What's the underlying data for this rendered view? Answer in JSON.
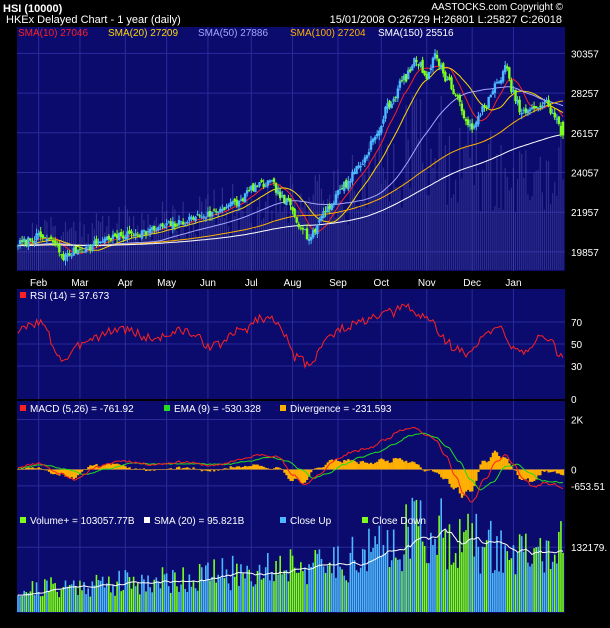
{
  "header": {
    "title": "HSI (10000)",
    "subtitle": "HKEx  Delayed Chart - 1 year (daily)",
    "quote": "15/01/2008  O:26729  H:26801  L:25827  C:26018",
    "copyright": "AASTOCKS.com Copyright ©"
  },
  "colors": {
    "background": "#000000",
    "panel": "#0b0b6e",
    "grid": "#2a2a9a",
    "up": "#4db8ff",
    "down": "#7cff1a",
    "sma10": "#ff2020",
    "sma20": "#ffd700",
    "sma50": "#a6a6ff",
    "sma100": "#ffb000",
    "sma150": "#ffffff",
    "rsi": "#ff2020",
    "macd": "#ff2020",
    "ema": "#22dd22",
    "divergence": "#ffb000",
    "volume_sma": "#ffffff"
  },
  "chart_data": [
    {
      "type": "candlestick",
      "legend": [
        {
          "label": "SMA(10) 27046",
          "color": "#ff2020"
        },
        {
          "label": "SMA(20) 27209",
          "color": "#ffd700"
        },
        {
          "label": "SMA(50) 27886",
          "color": "#a6a6ff"
        },
        {
          "label": "SMA(100) 27204",
          "color": "#ffb000"
        },
        {
          "label": "SMA(150) 25516",
          "color": "#ffffff"
        }
      ],
      "x_ticks": [
        "Feb",
        "Mar",
        "Apr",
        "May",
        "Jun",
        "Jul",
        "Aug",
        "Sep",
        "Oct",
        "Nov",
        "Dec",
        "Jan"
      ],
      "y_ticks": [
        30357,
        28257,
        26157,
        24057,
        21957,
        19857
      ],
      "ylim": [
        18900,
        31700
      ],
      "close_anchors": [
        [
          0,
          20300
        ],
        [
          10,
          20650
        ],
        [
          17,
          20400
        ],
        [
          22,
          19600
        ],
        [
          30,
          20000
        ],
        [
          45,
          20600
        ],
        [
          60,
          20900
        ],
        [
          75,
          21300
        ],
        [
          90,
          21800
        ],
        [
          105,
          22400
        ],
        [
          115,
          23300
        ],
        [
          122,
          23500
        ],
        [
          130,
          22500
        ],
        [
          137,
          21300
        ],
        [
          141,
          20600
        ],
        [
          150,
          22200
        ],
        [
          158,
          23400
        ],
        [
          166,
          24500
        ],
        [
          173,
          25900
        ],
        [
          180,
          27700
        ],
        [
          187,
          29000
        ],
        [
          193,
          30000
        ],
        [
          198,
          29200
        ],
        [
          202,
          30200
        ],
        [
          208,
          29000
        ],
        [
          212,
          28100
        ],
        [
          216,
          27100
        ],
        [
          220,
          26300
        ],
        [
          226,
          27600
        ],
        [
          232,
          28700
        ],
        [
          236,
          29600
        ],
        [
          240,
          28200
        ],
        [
          244,
          27200
        ],
        [
          248,
          27300
        ],
        [
          252,
          27600
        ],
        [
          256,
          27700
        ],
        [
          260,
          27000
        ],
        [
          264,
          26000
        ]
      ],
      "last": {
        "open": 26729,
        "high": 26801,
        "low": 25827,
        "close": 26018
      }
    },
    {
      "type": "line",
      "legend": "RSI (14) = 37.673",
      "y_ticks": [
        70,
        50,
        30,
        0
      ],
      "ylim": [
        0,
        100
      ],
      "anchors": [
        [
          0,
          62
        ],
        [
          10,
          70
        ],
        [
          22,
          36
        ],
        [
          35,
          56
        ],
        [
          50,
          64
        ],
        [
          65,
          55
        ],
        [
          80,
          62
        ],
        [
          95,
          48
        ],
        [
          108,
          62
        ],
        [
          118,
          74
        ],
        [
          126,
          71
        ],
        [
          134,
          38
        ],
        [
          141,
          32
        ],
        [
          150,
          56
        ],
        [
          160,
          66
        ],
        [
          170,
          72
        ],
        [
          180,
          78
        ],
        [
          188,
          84
        ],
        [
          194,
          76
        ],
        [
          200,
          72
        ],
        [
          206,
          55
        ],
        [
          212,
          46
        ],
        [
          218,
          40
        ],
        [
          226,
          58
        ],
        [
          234,
          64
        ],
        [
          240,
          48
        ],
        [
          246,
          44
        ],
        [
          252,
          56
        ],
        [
          258,
          50
        ],
        [
          264,
          37.673
        ]
      ]
    },
    {
      "type": "line",
      "legend": [
        {
          "label": "MACD (5,26) = -761.92",
          "color": "#ff2020"
        },
        {
          "label": "EMA (9) = -530.328",
          "color": "#22dd22"
        },
        {
          "label": "Divergence = -231.593",
          "color": "#ffb000"
        }
      ],
      "y_ticks": [
        "2K",
        "0",
        "-653.51"
      ],
      "ylim": [
        -1700,
        2700
      ],
      "macd_anchors": [
        [
          0,
          100
        ],
        [
          10,
          250
        ],
        [
          20,
          -150
        ],
        [
          28,
          -400
        ],
        [
          38,
          100
        ],
        [
          50,
          350
        ],
        [
          65,
          200
        ],
        [
          80,
          300
        ],
        [
          95,
          150
        ],
        [
          108,
          400
        ],
        [
          118,
          600
        ],
        [
          126,
          500
        ],
        [
          133,
          -200
        ],
        [
          139,
          -600
        ],
        [
          146,
          -200
        ],
        [
          154,
          400
        ],
        [
          162,
          700
        ],
        [
          170,
          850
        ],
        [
          178,
          1200
        ],
        [
          186,
          1600
        ],
        [
          192,
          1700
        ],
        [
          197,
          1400
        ],
        [
          202,
          1200
        ],
        [
          207,
          600
        ],
        [
          212,
          -300
        ],
        [
          216,
          -1000
        ],
        [
          220,
          -1300
        ],
        [
          226,
          -400
        ],
        [
          232,
          300
        ],
        [
          236,
          600
        ],
        [
          240,
          200
        ],
        [
          245,
          -400
        ],
        [
          250,
          -700
        ],
        [
          255,
          -550
        ],
        [
          260,
          -600
        ],
        [
          264,
          -761.92
        ]
      ],
      "ema_anchors": [
        [
          0,
          50
        ],
        [
          12,
          180
        ],
        [
          24,
          0
        ],
        [
          32,
          -200
        ],
        [
          42,
          0
        ],
        [
          55,
          250
        ],
        [
          70,
          220
        ],
        [
          85,
          230
        ],
        [
          100,
          200
        ],
        [
          112,
          330
        ],
        [
          122,
          500
        ],
        [
          130,
          350
        ],
        [
          137,
          0
        ],
        [
          143,
          -350
        ],
        [
          150,
          -150
        ],
        [
          158,
          200
        ],
        [
          166,
          500
        ],
        [
          174,
          700
        ],
        [
          182,
          1000
        ],
        [
          190,
          1350
        ],
        [
          196,
          1450
        ],
        [
          202,
          1300
        ],
        [
          208,
          900
        ],
        [
          214,
          300
        ],
        [
          219,
          -400
        ],
        [
          224,
          -800
        ],
        [
          230,
          -500
        ],
        [
          236,
          100
        ],
        [
          242,
          200
        ],
        [
          248,
          -150
        ],
        [
          254,
          -450
        ],
        [
          260,
          -500
        ],
        [
          264,
          -530.328
        ]
      ]
    },
    {
      "type": "bar",
      "legend": [
        {
          "label": "Volume+ = 103057.77B",
          "color": "#7cff1a"
        },
        {
          "label": "SMA (20) = 95.821B",
          "color": "#ffffff"
        },
        {
          "label": "Close Up",
          "color": "#4db8ff"
        },
        {
          "label": "Close Down",
          "color": "#7cff1a"
        }
      ],
      "y_ticks": [
        "132179."
      ],
      "ylim": [
        0,
        200000
      ],
      "anchors": [
        [
          0,
          45000
        ],
        [
          20,
          52000
        ],
        [
          40,
          58000
        ],
        [
          60,
          62000
        ],
        [
          80,
          68000
        ],
        [
          100,
          78000
        ],
        [
          115,
          85000
        ],
        [
          125,
          92000
        ],
        [
          135,
          105000
        ],
        [
          145,
          90000
        ],
        [
          160,
          110000
        ],
        [
          175,
          125000
        ],
        [
          185,
          150000
        ],
        [
          192,
          175000
        ],
        [
          198,
          165000
        ],
        [
          205,
          160000
        ],
        [
          212,
          155000
        ],
        [
          220,
          140000
        ],
        [
          230,
          130000
        ],
        [
          240,
          118000
        ],
        [
          250,
          115000
        ],
        [
          258,
          125000
        ],
        [
          264,
          130000
        ]
      ]
    }
  ]
}
